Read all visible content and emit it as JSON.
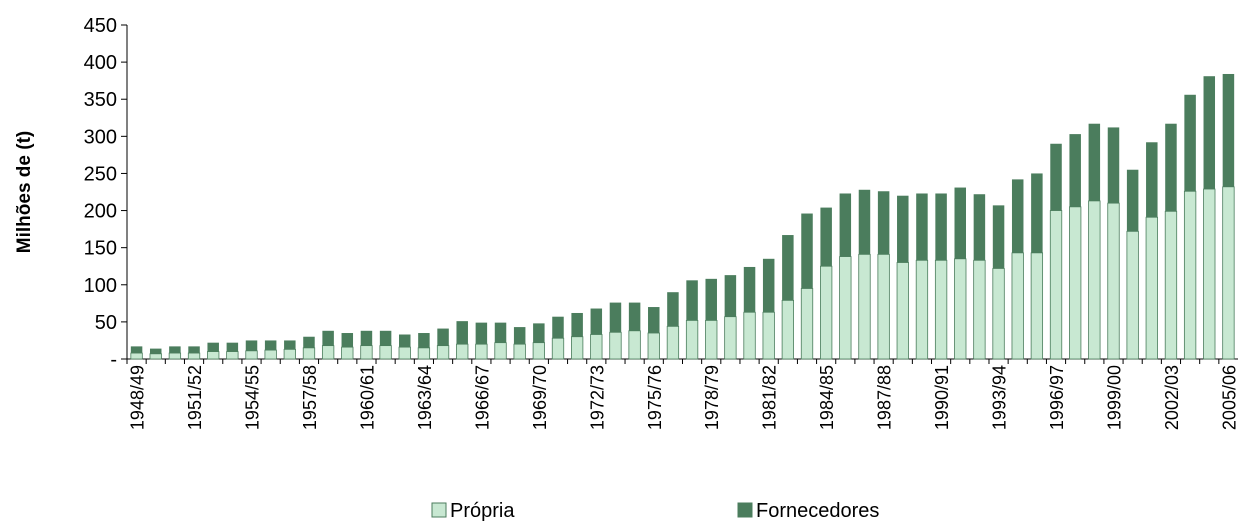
{
  "chart_data": {
    "type": "stacked_bar",
    "y_label": "Milhões de (t)",
    "categories": [
      "1948/49",
      null,
      null,
      "1951/52",
      null,
      null,
      "1954/55",
      null,
      null,
      "1957/58",
      null,
      null,
      "1960/61",
      null,
      null,
      "1963/64",
      null,
      null,
      "1966/67",
      null,
      null,
      "1969/70",
      null,
      null,
      "1972/73",
      null,
      null,
      "1975/76",
      null,
      null,
      "1978/79",
      null,
      null,
      "1981/82",
      null,
      null,
      "1984/85",
      null,
      null,
      "1987/88",
      null,
      null,
      "1990/91",
      null,
      null,
      "1993/94",
      null,
      null,
      "1996/97",
      null,
      null,
      "1999/00",
      null,
      null,
      "2002/03",
      null,
      null,
      "2005/06"
    ],
    "series": [
      {
        "name": "Própria",
        "color": "#c8e8d2",
        "values": [
          8,
          7,
          8,
          8,
          10,
          10,
          11,
          12,
          13,
          15,
          18,
          16,
          18,
          18,
          16,
          15,
          18,
          20,
          20,
          22,
          20,
          22,
          28,
          30,
          33,
          36,
          38,
          35,
          44,
          52,
          52,
          57,
          63,
          63,
          79,
          95,
          125,
          138,
          141,
          141,
          130,
          133,
          133,
          135,
          133,
          122,
          143,
          143,
          200,
          205,
          213,
          210,
          172,
          191,
          199,
          226,
          229,
          232
        ]
      },
      {
        "name": "Fornecedores",
        "color": "#4b7d5d",
        "values": [
          9,
          7,
          9,
          9,
          12,
          12,
          14,
          13,
          12,
          15,
          20,
          19,
          20,
          20,
          17,
          20,
          23,
          31,
          29,
          27,
          23,
          26,
          29,
          32,
          35,
          40,
          38,
          35,
          46,
          54,
          56,
          56,
          61,
          72,
          88,
          101,
          79,
          85,
          87,
          85,
          90,
          90,
          90,
          96,
          89,
          85,
          99,
          107,
          90,
          98,
          104,
          102,
          83,
          101,
          118,
          130,
          152,
          152
        ]
      }
    ],
    "ylim": [
      0,
      450
    ],
    "yticks": [
      {
        "value": 0,
        "label": "-"
      },
      50,
      100,
      150,
      200,
      250,
      300,
      350,
      400,
      450
    ]
  }
}
